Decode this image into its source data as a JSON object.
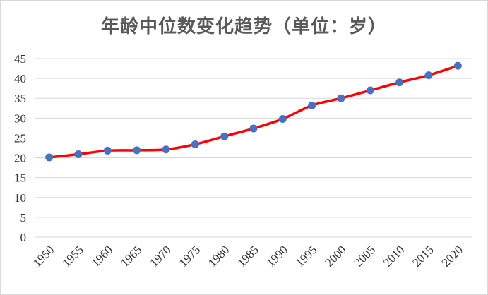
{
  "chart_data": {
    "type": "line",
    "title": "年龄中位数变化趋势（单位：岁）",
    "xlabel": "",
    "ylabel": "",
    "categories": [
      "1950",
      "1955",
      "1960",
      "1965",
      "1970",
      "1975",
      "1980",
      "1985",
      "1990",
      "1995",
      "2000",
      "2005",
      "2010",
      "2015",
      "2020"
    ],
    "series": [
      {
        "values": [
          20.1,
          20.9,
          21.8,
          21.9,
          22.1,
          23.4,
          25.4,
          27.4,
          29.8,
          33.2,
          35.0,
          37.0,
          39.0,
          40.8,
          43.2
        ]
      }
    ],
    "ylim": [
      0,
      45
    ],
    "yticks": [
      0,
      5,
      10,
      15,
      20,
      25,
      30,
      35,
      40,
      45
    ],
    "grid": true,
    "legend": "none",
    "colors": {
      "line": "#ff0000",
      "marker": "#4472c4",
      "grid": "#d9d9d9"
    }
  }
}
